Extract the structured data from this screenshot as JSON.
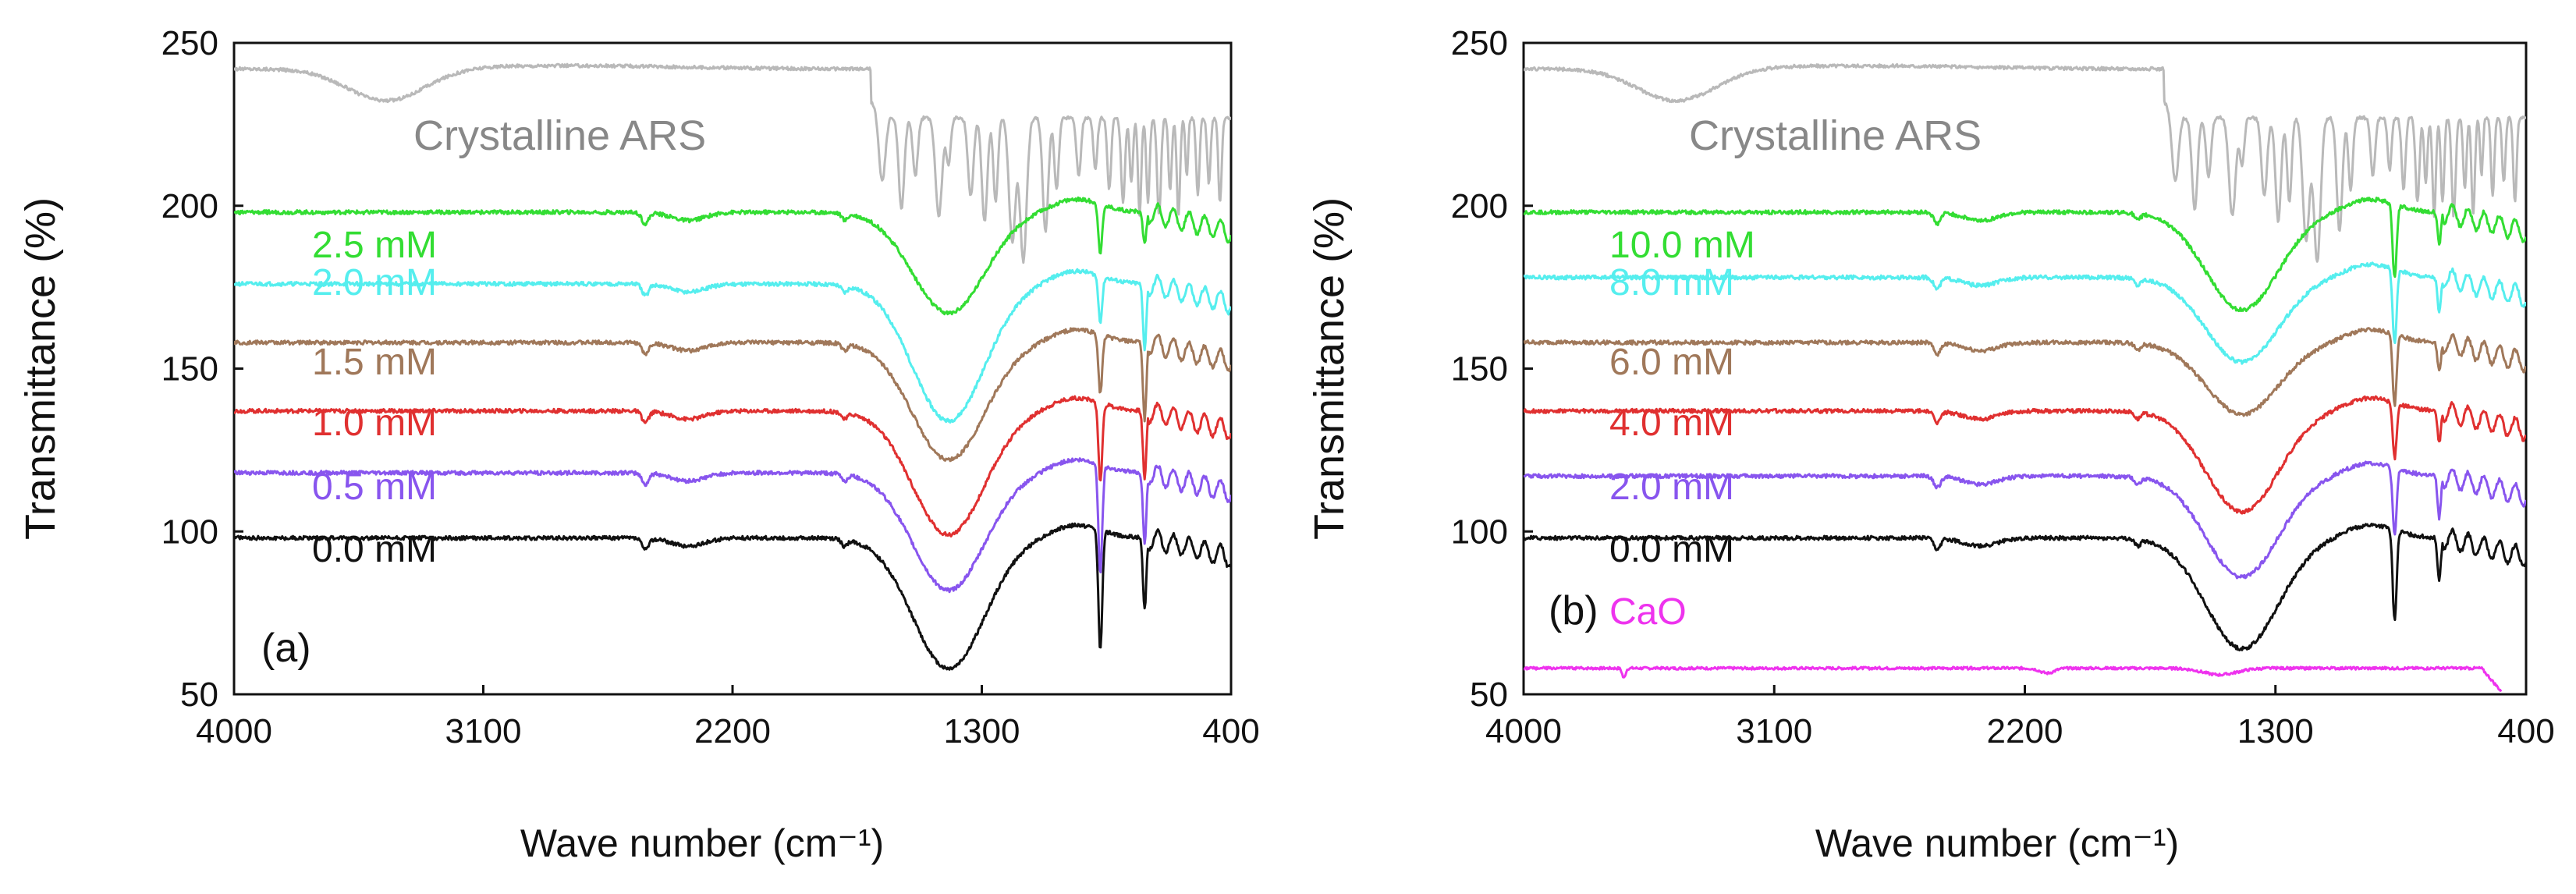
{
  "chart_data": [
    {
      "type": "line",
      "panel_label": "(a)",
      "xlabel": "Wave number (cm⁻¹)",
      "ylabel": "Transmittance (%)",
      "xlim": [
        4000,
        400
      ],
      "ylim": [
        50,
        250
      ],
      "xticks": [
        "4000",
        "3100",
        "2200",
        "1300",
        "400"
      ],
      "yticks": [
        "50",
        "100",
        "150",
        "200",
        "250"
      ],
      "series": [
        {
          "name": "Crystalline ARS",
          "color": "#b9b9b9",
          "kind": "ars",
          "baseline": 242
        },
        {
          "name": "2.5 mM",
          "color": "#33dd33",
          "kind": "sample",
          "baseline": 198,
          "peak": 167,
          "dip1": 183,
          "dip2": 188
        },
        {
          "name": "2.0 mM",
          "color": "#55eeee",
          "kind": "sample",
          "baseline": 176,
          "peak": 134,
          "dip1": 162,
          "dip2": 156
        },
        {
          "name": "1.5 mM",
          "color": "#a0785a",
          "kind": "sample",
          "baseline": 158,
          "peak": 122,
          "dip1": 140,
          "dip2": 134
        },
        {
          "name": "1.0 mM",
          "color": "#e03030",
          "kind": "sample",
          "baseline": 137,
          "peak": 99,
          "dip1": 113,
          "dip2": 116
        },
        {
          "name": "0.5 mM",
          "color": "#8855ee",
          "kind": "sample",
          "baseline": 118,
          "peak": 82,
          "dip1": 85,
          "dip2": 96
        },
        {
          "name": "0.0 mM",
          "color": "#111111",
          "kind": "sample",
          "baseline": 98,
          "peak": 58,
          "dip1": 61,
          "dip2": 76
        }
      ]
    },
    {
      "type": "line",
      "panel_label": "(b)",
      "xlabel": "Wave number (cm⁻¹)",
      "ylabel": "Transmittance (%)",
      "xlim": [
        4000,
        400
      ],
      "ylim": [
        50,
        250
      ],
      "xticks": [
        "4000",
        "3100",
        "2200",
        "1300",
        "400"
      ],
      "yticks": [
        "50",
        "100",
        "150",
        "200",
        "250"
      ],
      "series": [
        {
          "name": "Crystalline ARS",
          "color": "#b9b9b9",
          "kind": "ars",
          "baseline": 242
        },
        {
          "name": "10.0 mM",
          "color": "#33dd33",
          "kind": "sample",
          "baseline": 198,
          "peak": 168,
          "dip1": 175,
          "dip2": 188
        },
        {
          "name": "8.0 mM",
          "color": "#55eeee",
          "kind": "sample",
          "baseline": 178,
          "peak": 152,
          "dip1": 155,
          "dip2": 167
        },
        {
          "name": "6.0 mM",
          "color": "#a0785a",
          "kind": "sample",
          "baseline": 158,
          "peak": 136,
          "dip1": 136,
          "dip2": 149
        },
        {
          "name": "4.0 mM",
          "color": "#e03030",
          "kind": "sample",
          "baseline": 137,
          "peak": 106,
          "dip1": 120,
          "dip2": 127
        },
        {
          "name": "2.0 mM",
          "color": "#8855ee",
          "kind": "sample",
          "baseline": 117,
          "peak": 86,
          "dip1": 96,
          "dip2": 104
        },
        {
          "name": "0.0 mM",
          "color": "#111111",
          "kind": "sample",
          "baseline": 98,
          "peak": 64,
          "dip1": 70,
          "dip2": 85
        },
        {
          "name": "CaO",
          "color": "#ee33ee",
          "kind": "flat",
          "baseline": 58
        }
      ]
    }
  ]
}
